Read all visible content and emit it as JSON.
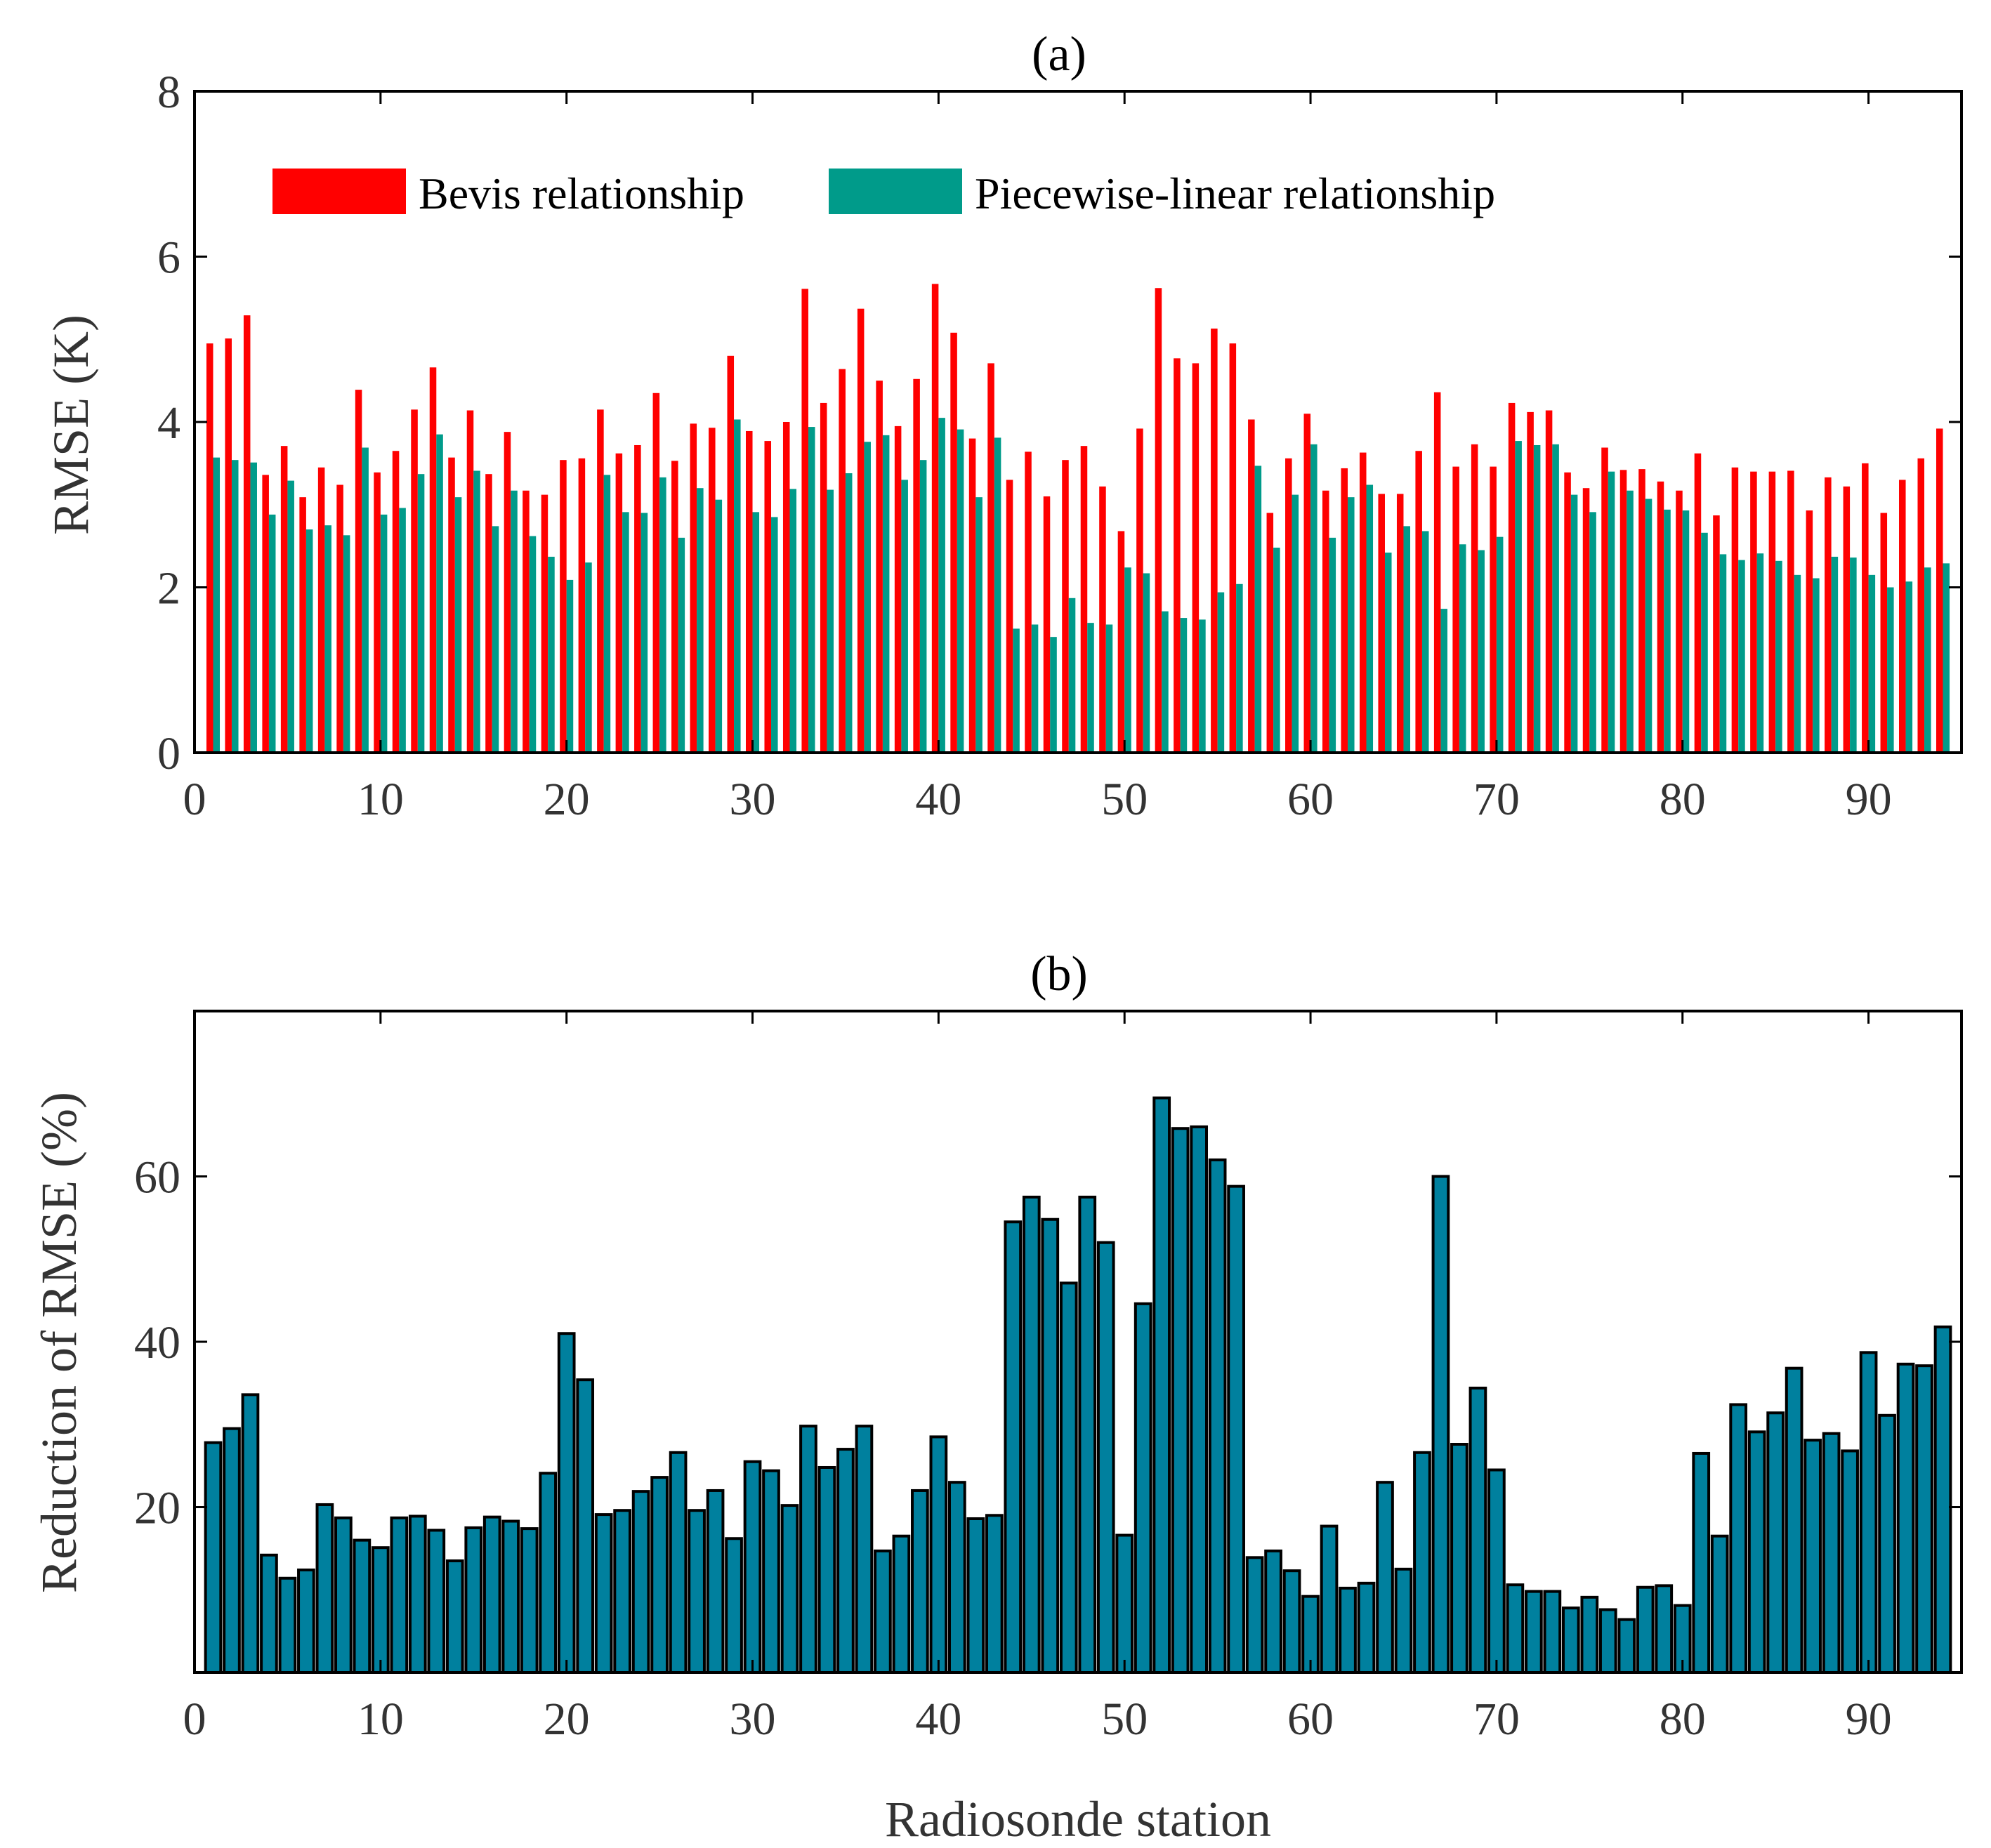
{
  "chart_data": [
    {
      "type": "bar",
      "title": "(a)",
      "xlabel": "",
      "ylabel": "RMSE (K)",
      "xlim": [
        0,
        95
      ],
      "ylim": [
        0,
        8
      ],
      "xticks": [
        0,
        10,
        20,
        30,
        40,
        50,
        60,
        70,
        80,
        90
      ],
      "yticks": [
        0,
        2,
        4,
        6,
        8
      ],
      "legend": "top-left",
      "x": [
        1,
        2,
        3,
        4,
        5,
        6,
        7,
        8,
        9,
        10,
        11,
        12,
        13,
        14,
        15,
        16,
        17,
        18,
        19,
        20,
        21,
        22,
        23,
        24,
        25,
        26,
        27,
        28,
        29,
        30,
        31,
        32,
        33,
        34,
        35,
        36,
        37,
        38,
        39,
        40,
        41,
        42,
        43,
        44,
        45,
        46,
        47,
        48,
        49,
        50,
        51,
        52,
        53,
        54,
        55,
        56,
        57,
        58,
        59,
        60,
        61,
        62,
        63,
        64,
        65,
        66,
        67,
        68,
        69,
        70,
        71,
        72,
        73,
        74,
        75,
        76,
        77,
        78,
        79,
        80,
        81,
        82,
        83,
        84,
        85,
        86,
        87,
        88,
        89,
        90,
        91,
        92,
        93,
        94
      ],
      "series": [
        {
          "name": "Bevis relationship",
          "color": "#ff0000",
          "values": [
            4.95,
            5.01,
            5.29,
            3.36,
            3.71,
            3.09,
            3.45,
            3.24,
            4.39,
            3.39,
            3.65,
            4.15,
            4.66,
            3.57,
            4.14,
            3.37,
            3.88,
            3.17,
            3.12,
            3.54,
            3.56,
            4.15,
            3.62,
            3.72,
            4.35,
            3.53,
            3.98,
            3.93,
            4.8,
            3.89,
            3.77,
            4.0,
            5.61,
            4.23,
            4.64,
            5.37,
            4.5,
            3.95,
            4.52,
            5.67,
            5.08,
            3.8,
            4.71,
            3.3,
            3.64,
            3.1,
            3.54,
            3.71,
            3.22,
            2.68,
            3.92,
            5.62,
            4.77,
            4.71,
            5.13,
            4.95,
            4.03,
            2.9,
            3.56,
            4.1,
            3.17,
            3.44,
            3.63,
            3.13,
            3.13,
            3.65,
            4.36,
            3.46,
            3.73,
            3.46,
            4.23,
            4.12,
            4.14,
            3.39,
            3.2,
            3.69,
            3.42,
            3.43,
            3.28,
            3.17,
            3.62,
            2.87,
            3.45,
            3.4,
            3.4,
            3.41,
            2.93,
            3.33,
            3.22,
            3.5,
            2.9,
            3.3,
            3.56,
            3.92
          ]
        },
        {
          "name": "Piecewise-linear relationship",
          "color": "#009b8a",
          "values": [
            3.57,
            3.54,
            3.51,
            2.88,
            3.29,
            2.7,
            2.75,
            2.63,
            3.69,
            2.88,
            2.96,
            3.37,
            3.85,
            3.09,
            3.41,
            2.74,
            3.17,
            2.62,
            2.37,
            2.09,
            2.3,
            3.36,
            2.91,
            2.9,
            3.33,
            2.6,
            3.2,
            3.06,
            4.03,
            2.91,
            2.85,
            3.19,
            3.94,
            3.18,
            3.38,
            3.76,
            3.84,
            3.3,
            3.54,
            4.05,
            3.91,
            3.09,
            3.81,
            1.5,
            1.55,
            1.4,
            1.87,
            1.57,
            1.55,
            2.24,
            2.17,
            1.71,
            1.63,
            1.61,
            1.94,
            2.04,
            3.47,
            2.48,
            3.12,
            3.73,
            2.6,
            3.09,
            3.24,
            2.42,
            2.74,
            2.68,
            1.74,
            2.52,
            2.45,
            2.61,
            3.77,
            3.72,
            3.73,
            3.12,
            2.91,
            3.4,
            3.17,
            3.07,
            2.94,
            2.93,
            2.66,
            2.4,
            2.33,
            2.41,
            2.32,
            2.15,
            2.11,
            2.37,
            2.36,
            2.15,
            2.0,
            2.07,
            2.24,
            2.29
          ]
        }
      ]
    },
    {
      "type": "bar",
      "title": "(b)",
      "xlabel": "Radiosonde station",
      "ylabel": "Reduction of RMSE (%)",
      "xlim": [
        0,
        95
      ],
      "ylim": [
        0,
        80
      ],
      "xticks": [
        0,
        10,
        20,
        30,
        40,
        50,
        60,
        70,
        80,
        90
      ],
      "yticks": [
        20,
        40,
        60
      ],
      "color": "#00809e",
      "x": [
        1,
        2,
        3,
        4,
        5,
        6,
        7,
        8,
        9,
        10,
        11,
        12,
        13,
        14,
        15,
        16,
        17,
        18,
        19,
        20,
        21,
        22,
        23,
        24,
        25,
        26,
        27,
        28,
        29,
        30,
        31,
        32,
        33,
        34,
        35,
        36,
        37,
        38,
        39,
        40,
        41,
        42,
        43,
        44,
        45,
        46,
        47,
        48,
        49,
        50,
        51,
        52,
        53,
        54,
        55,
        56,
        57,
        58,
        59,
        60,
        61,
        62,
        63,
        64,
        65,
        66,
        67,
        68,
        69,
        70,
        71,
        72,
        73,
        74,
        75,
        76,
        77,
        78,
        79,
        80,
        81,
        82,
        83,
        84,
        85,
        86,
        87,
        88,
        89,
        90,
        91,
        92,
        93,
        94
      ],
      "values": [
        27.8,
        29.5,
        33.6,
        14.2,
        11.4,
        12.4,
        20.3,
        18.7,
        16.0,
        15.1,
        18.7,
        18.9,
        17.2,
        13.5,
        17.5,
        18.8,
        18.3,
        17.4,
        24.1,
        41.0,
        35.4,
        19.1,
        19.6,
        21.9,
        23.6,
        26.6,
        19.6,
        22.0,
        16.2,
        25.5,
        24.4,
        20.2,
        29.8,
        24.8,
        27.0,
        29.8,
        14.7,
        16.5,
        22.0,
        28.5,
        23.0,
        18.6,
        19.0,
        54.5,
        57.5,
        54.8,
        47.1,
        57.5,
        52.0,
        16.6,
        44.6,
        69.5,
        65.8,
        66.0,
        62.0,
        58.8,
        13.9,
        14.7,
        12.3,
        9.2,
        17.7,
        10.2,
        10.8,
        23.0,
        12.5,
        26.6,
        60.0,
        27.6,
        34.4,
        24.5,
        10.6,
        9.8,
        9.8,
        7.8,
        9.1,
        7.6,
        6.4,
        10.3,
        10.5,
        8.1,
        26.5,
        16.5,
        32.4,
        29.1,
        31.4,
        36.8,
        28.1,
        28.9,
        26.8,
        38.7,
        31.1,
        37.3,
        37.1,
        41.8
      ]
    }
  ]
}
